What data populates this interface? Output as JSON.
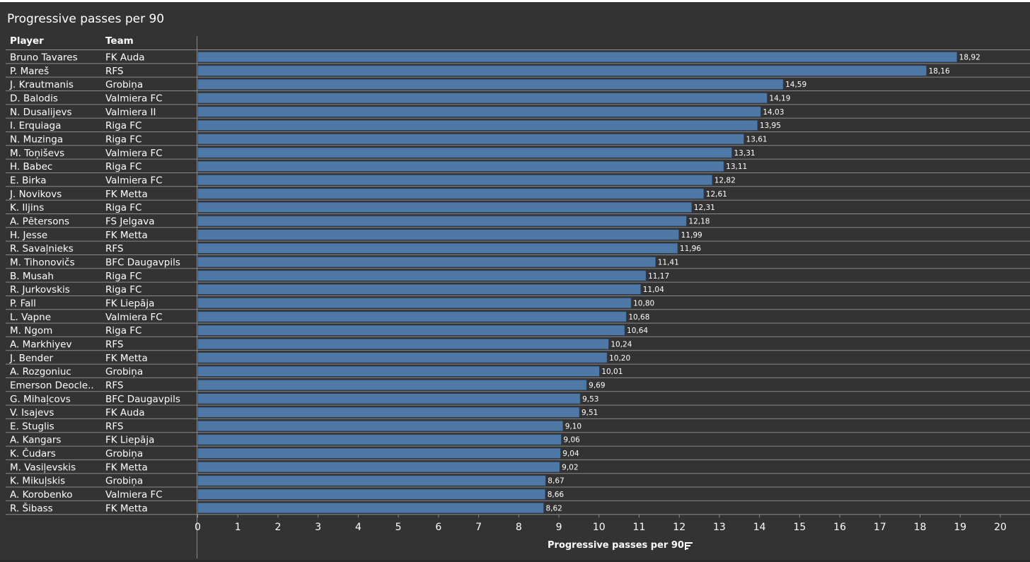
{
  "title": "Progressive passes per 90",
  "columns": {
    "player": "Player",
    "team": "Team"
  },
  "colors": {
    "bar": "#4e79a7",
    "background": "#333333",
    "text": "#ffffff",
    "rule": "#8a8a8a"
  },
  "chart_data": {
    "type": "bar",
    "orientation": "horizontal",
    "title": "Progressive passes per 90",
    "xlabel": "Progressive passes per 90",
    "xlim": [
      0,
      20
    ],
    "xticks": [
      0,
      1,
      2,
      3,
      4,
      5,
      6,
      7,
      8,
      9,
      10,
      11,
      12,
      13,
      14,
      15,
      16,
      17,
      18,
      19,
      20
    ],
    "grid": false,
    "rows": [
      {
        "player": "Bruno Tavares",
        "team": "FK Auda",
        "value": 18.92,
        "label": "18,92"
      },
      {
        "player": "P. Mareš",
        "team": "RFS",
        "value": 18.16,
        "label": "18,16"
      },
      {
        "player": "J. Krautmanis",
        "team": "Grobiņa",
        "value": 14.59,
        "label": "14,59"
      },
      {
        "player": "D. Balodis",
        "team": "Valmiera FC",
        "value": 14.19,
        "label": "14,19"
      },
      {
        "player": "N. Dusalijevs",
        "team": "Valmiera II",
        "value": 14.03,
        "label": "14,03"
      },
      {
        "player": "I. Erquiaga",
        "team": "Riga FC",
        "value": 13.95,
        "label": "13,95"
      },
      {
        "player": "N. Muzinga",
        "team": "Riga FC",
        "value": 13.61,
        "label": "13,61"
      },
      {
        "player": "M. Toņiševs",
        "team": "Valmiera FC",
        "value": 13.31,
        "label": "13,31"
      },
      {
        "player": "H. Babec",
        "team": "Riga FC",
        "value": 13.11,
        "label": "13,11"
      },
      {
        "player": "E. Birka",
        "team": "Valmiera FC",
        "value": 12.82,
        "label": "12,82"
      },
      {
        "player": "J. Novikovs",
        "team": "FK Metta",
        "value": 12.61,
        "label": "12,61"
      },
      {
        "player": "K. Iljins",
        "team": "Riga FC",
        "value": 12.31,
        "label": "12,31"
      },
      {
        "player": "A. Pētersons",
        "team": "FS Jelgava",
        "value": 12.18,
        "label": "12,18"
      },
      {
        "player": "H. Jesse",
        "team": "FK Metta",
        "value": 11.99,
        "label": "11,99"
      },
      {
        "player": "R. Savaļnieks",
        "team": "RFS",
        "value": 11.96,
        "label": "11,96"
      },
      {
        "player": "M. Tihonovičs",
        "team": "BFC Daugavpils",
        "value": 11.41,
        "label": "11,41"
      },
      {
        "player": "B. Musah",
        "team": "Riga FC",
        "value": 11.17,
        "label": "11,17"
      },
      {
        "player": "R. Jurkovskis",
        "team": "Riga FC",
        "value": 11.04,
        "label": "11,04"
      },
      {
        "player": "P. Fall",
        "team": "FK Liepāja",
        "value": 10.8,
        "label": "10,80"
      },
      {
        "player": "L. Vapne",
        "team": "Valmiera FC",
        "value": 10.68,
        "label": "10,68"
      },
      {
        "player": "M. Ngom",
        "team": "Riga FC",
        "value": 10.64,
        "label": "10,64"
      },
      {
        "player": "A. Markhiyev",
        "team": "RFS",
        "value": 10.24,
        "label": "10,24"
      },
      {
        "player": "J. Bender",
        "team": "FK Metta",
        "value": 10.2,
        "label": "10,20"
      },
      {
        "player": "A. Rozgoniuc",
        "team": "Grobiņa",
        "value": 10.01,
        "label": "10,01"
      },
      {
        "player": "Emerson Deocle..",
        "team": "RFS",
        "value": 9.69,
        "label": "9,69"
      },
      {
        "player": "G. Mihaļcovs",
        "team": "BFC Daugavpils",
        "value": 9.53,
        "label": "9,53"
      },
      {
        "player": "V. Isajevs",
        "team": "FK Auda",
        "value": 9.51,
        "label": "9,51"
      },
      {
        "player": "E. Stuglis",
        "team": "RFS",
        "value": 9.1,
        "label": "9,10"
      },
      {
        "player": "A. Kangars",
        "team": "FK Liepāja",
        "value": 9.06,
        "label": "9,06"
      },
      {
        "player": "K. Čudars",
        "team": "Grobiņa",
        "value": 9.04,
        "label": "9,04"
      },
      {
        "player": "M. Vasiļevskis",
        "team": "FK Metta",
        "value": 9.02,
        "label": "9,02"
      },
      {
        "player": "K. Mikuļskis",
        "team": "Grobiņa",
        "value": 8.67,
        "label": "8,67"
      },
      {
        "player": "A. Korobenko",
        "team": "Valmiera FC",
        "value": 8.66,
        "label": "8,66"
      },
      {
        "player": "R. Šibass",
        "team": "FK Metta",
        "value": 8.62,
        "label": "8,62"
      }
    ]
  },
  "icons": {
    "sort": "sort-descending-icon"
  }
}
